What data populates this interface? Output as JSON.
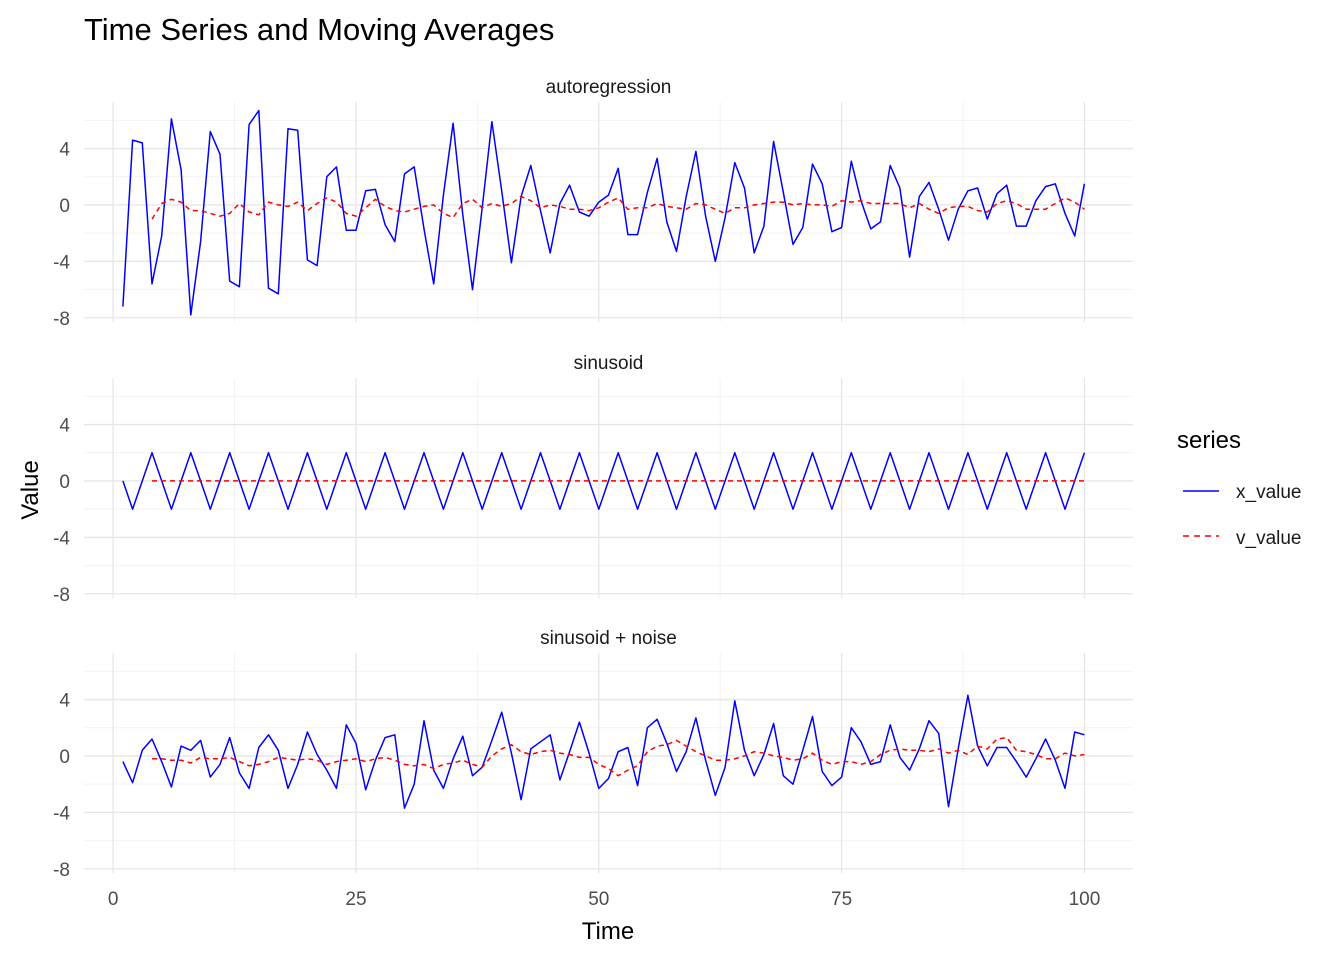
{
  "chart_data": {
    "type": "line",
    "title": "Time Series and Moving Averages",
    "xlabel": "Time",
    "ylabel": "Value",
    "xlim": [
      -3,
      105
    ],
    "ylim": [
      -8.3,
      7.3
    ],
    "x_ticks": [
      0,
      25,
      50,
      75,
      100
    ],
    "y_ticks": [
      -8,
      -4,
      0,
      4
    ],
    "grid": true,
    "legend": {
      "title": "series",
      "position": "right",
      "entries": [
        {
          "name": "x_value",
          "color": "#0000ff",
          "style": "solid"
        },
        {
          "name": "v_value",
          "color": "#ff0000",
          "style": "dashed"
        }
      ]
    },
    "x": [
      1,
      2,
      3,
      4,
      5,
      6,
      7,
      8,
      9,
      10,
      11,
      12,
      13,
      14,
      15,
      16,
      17,
      18,
      19,
      20,
      21,
      22,
      23,
      24,
      25,
      26,
      27,
      28,
      29,
      30,
      31,
      32,
      33,
      34,
      35,
      36,
      37,
      38,
      39,
      40,
      41,
      42,
      43,
      44,
      45,
      46,
      47,
      48,
      49,
      50,
      51,
      52,
      53,
      54,
      55,
      56,
      57,
      58,
      59,
      60,
      61,
      62,
      63,
      64,
      65,
      66,
      67,
      68,
      69,
      70,
      71,
      72,
      73,
      74,
      75,
      76,
      77,
      78,
      79,
      80,
      81,
      82,
      83,
      84,
      85,
      86,
      87,
      88,
      89,
      90,
      91,
      92,
      93,
      94,
      95,
      96,
      97,
      98,
      99,
      100
    ],
    "panels": [
      {
        "name": "autoregression",
        "series": [
          {
            "name": "x_value",
            "values": [
              -7.2,
              4.6,
              4.4,
              -5.6,
              -2.2,
              6.1,
              2.5,
              -7.8,
              -2.6,
              5.2,
              3.6,
              -5.4,
              -5.8,
              5.7,
              6.7,
              -5.9,
              -6.3,
              5.4,
              5.3,
              -3.9,
              -4.3,
              2.0,
              2.7,
              -1.8,
              -1.8,
              1.0,
              1.1,
              -1.4,
              -2.6,
              2.2,
              2.7,
              -1.7,
              -5.6,
              0.7,
              5.8,
              -0.7,
              -6.0,
              -0.2,
              5.9,
              1.0,
              -4.1,
              0.6,
              2.8,
              -0.4,
              -3.4,
              0.1,
              1.4,
              -0.5,
              -0.8,
              0.2,
              0.7,
              2.6,
              -2.1,
              -2.1,
              0.9,
              3.3,
              -1.2,
              -3.3,
              0.6,
              3.8,
              -0.8,
              -4.0,
              -0.9,
              3.0,
              1.2,
              -3.4,
              -1.5,
              4.5,
              0.9,
              -2.8,
              -1.6,
              2.9,
              1.5,
              -1.9,
              -1.6,
              3.1,
              0.3,
              -1.7,
              -1.2,
              2.8,
              1.2,
              -3.7,
              0.6,
              1.6,
              -0.3,
              -2.5,
              -0.3,
              1.0,
              1.2,
              -1.0,
              0.8,
              1.4,
              -1.5,
              -1.5,
              0.3,
              1.3,
              1.5,
              -0.6,
              -2.2,
              1.5
            ]
          },
          {
            "name": "v_value",
            "values": [
              null,
              null,
              null,
              -1.0,
              0.1,
              0.4,
              0.2,
              -0.4,
              -0.4,
              -0.6,
              -0.8,
              -0.6,
              0.1,
              -0.5,
              -0.7,
              0.2,
              0.0,
              -0.1,
              0.2,
              -0.4,
              0.1,
              0.5,
              0.2,
              -0.6,
              -0.8,
              -0.2,
              0.4,
              -0.1,
              -0.4,
              -0.5,
              -0.3,
              -0.1,
              0.0,
              -0.6,
              -0.9,
              0.1,
              0.4,
              -0.2,
              0.1,
              -0.1,
              0.1,
              0.6,
              0.3,
              -0.2,
              0.0,
              -0.1,
              -0.3,
              -0.3,
              -0.4,
              -0.2,
              0.2,
              0.5,
              -0.3,
              -0.2,
              -0.2,
              0.1,
              -0.1,
              -0.2,
              -0.3,
              0.1,
              0.0,
              -0.3,
              -0.6,
              -0.2,
              -0.2,
              0.0,
              0.1,
              0.2,
              0.2,
              0.0,
              0.1,
              0.0,
              0.0,
              -0.1,
              0.3,
              0.2,
              0.3,
              0.1,
              0.1,
              0.1,
              0.1,
              -0.2,
              0.1,
              -0.3,
              -0.6,
              -0.2,
              -0.1,
              -0.1,
              -0.4,
              -0.5,
              0.1,
              0.3,
              0.1,
              -0.3,
              -0.3,
              -0.3,
              0.1,
              0.5,
              0.2,
              -0.3
            ]
          }
        ]
      },
      {
        "name": "sinusoid",
        "series": [
          {
            "name": "x_value",
            "values": [
              0,
              -2,
              0,
              2,
              0,
              -2,
              0,
              2,
              0,
              -2,
              0,
              2,
              0,
              -2,
              0,
              2,
              0,
              -2,
              0,
              2,
              0,
              -2,
              0,
              2,
              0,
              -2,
              0,
              2,
              0,
              -2,
              0,
              2,
              0,
              -2,
              0,
              2,
              0,
              -2,
              0,
              2,
              0,
              -2,
              0,
              2,
              0,
              -2,
              0,
              2,
              0,
              -2,
              0,
              2,
              0,
              -2,
              0,
              2,
              0,
              -2,
              0,
              2,
              0,
              -2,
              0,
              2,
              0,
              -2,
              0,
              2,
              0,
              -2,
              0,
              2,
              0,
              -2,
              0,
              2,
              0,
              -2,
              0,
              2,
              0,
              -2,
              0,
              2,
              0,
              -2,
              0,
              2,
              0,
              -2,
              0,
              2,
              0,
              -2,
              0,
              2,
              0,
              -2,
              0,
              2
            ]
          },
          {
            "name": "v_value",
            "values": [
              null,
              null,
              null,
              0,
              0,
              0,
              0,
              0,
              0,
              0,
              0,
              0,
              0,
              0,
              0,
              0,
              0,
              0,
              0,
              0,
              0,
              0,
              0,
              0,
              0,
              0,
              0,
              0,
              0,
              0,
              0,
              0,
              0,
              0,
              0,
              0,
              0,
              0,
              0,
              0,
              0,
              0,
              0,
              0,
              0,
              0,
              0,
              0,
              0,
              0,
              0,
              0,
              0,
              0,
              0,
              0,
              0,
              0,
              0,
              0,
              0,
              0,
              0,
              0,
              0,
              0,
              0,
              0,
              0,
              0,
              0,
              0,
              0,
              0,
              0,
              0,
              0,
              0,
              0,
              0,
              0,
              0,
              0,
              0,
              0,
              0,
              0,
              0,
              0,
              0,
              0,
              0,
              0,
              0,
              0,
              0,
              0,
              0,
              0,
              0
            ]
          }
        ]
      },
      {
        "name": "sinusoid + noise",
        "series": [
          {
            "name": "x_value",
            "values": [
              -0.4,
              -1.9,
              0.4,
              1.2,
              -0.4,
              -2.2,
              0.7,
              0.4,
              1.1,
              -1.5,
              -0.6,
              1.3,
              -1.2,
              -2.3,
              0.6,
              1.5,
              0.4,
              -2.3,
              -0.6,
              1.7,
              0.1,
              -1.0,
              -2.3,
              2.2,
              0.9,
              -2.4,
              -0.3,
              1.3,
              1.5,
              -3.7,
              -2.0,
              2.5,
              -1.0,
              -2.3,
              -0.2,
              1.4,
              -1.4,
              -0.8,
              1.1,
              3.1,
              0.2,
              -3.1,
              0.5,
              1.0,
              1.5,
              -1.7,
              0.3,
              2.4,
              0.2,
              -2.3,
              -1.6,
              0.3,
              0.6,
              -2.1,
              2.0,
              2.6,
              0.9,
              -1.1,
              0.3,
              2.7,
              -0.3,
              -2.8,
              -0.8,
              3.9,
              0.4,
              -1.4,
              0.1,
              2.3,
              -1.4,
              -2.0,
              0.4,
              2.8,
              -1.1,
              -2.1,
              -1.5,
              2.0,
              1.0,
              -0.6,
              -0.4,
              2.2,
              -0.1,
              -1.0,
              0.5,
              2.5,
              1.6,
              -3.6,
              0.5,
              4.3,
              0.7,
              -0.7,
              0.6,
              0.6,
              -0.4,
              -1.5,
              -0.2,
              1.2,
              -0.3,
              -2.3,
              1.7,
              1.5
            ]
          },
          {
            "name": "v_value",
            "values": [
              null,
              null,
              null,
              -0.2,
              -0.2,
              -0.3,
              -0.3,
              -0.5,
              -0.1,
              -0.2,
              -0.2,
              -0.1,
              -0.4,
              -0.7,
              -0.6,
              -0.4,
              -0.1,
              -0.2,
              -0.3,
              -0.2,
              -0.3,
              -0.6,
              -0.4,
              -0.3,
              -0.2,
              -0.4,
              -0.2,
              -0.1,
              -0.3,
              -0.6,
              -0.7,
              -0.6,
              -0.9,
              -0.6,
              -0.5,
              -0.3,
              -0.6,
              -0.8,
              0.0,
              0.5,
              0.8,
              0.3,
              0.1,
              0.3,
              0.4,
              0.2,
              0.1,
              -0.1,
              -0.1,
              -0.6,
              -0.9,
              -1.4,
              -1.0,
              -0.7,
              0.3,
              0.7,
              0.8,
              1.1,
              0.7,
              0.3,
              0.0,
              -0.3,
              -0.3,
              -0.2,
              0.0,
              0.3,
              0.2,
              0.0,
              -0.1,
              -0.3,
              -0.2,
              0.2,
              -0.3,
              -0.6,
              -0.4,
              -0.4,
              -0.6,
              -0.4,
              0.1,
              0.4,
              0.5,
              0.4,
              0.4,
              0.3,
              0.5,
              0.2,
              0.4,
              0.1,
              0.7,
              0.5,
              1.2,
              1.3,
              0.4,
              0.3,
              0.1,
              -0.2,
              -0.2,
              0.2,
              0.0,
              0.1
            ]
          }
        ]
      }
    ]
  }
}
